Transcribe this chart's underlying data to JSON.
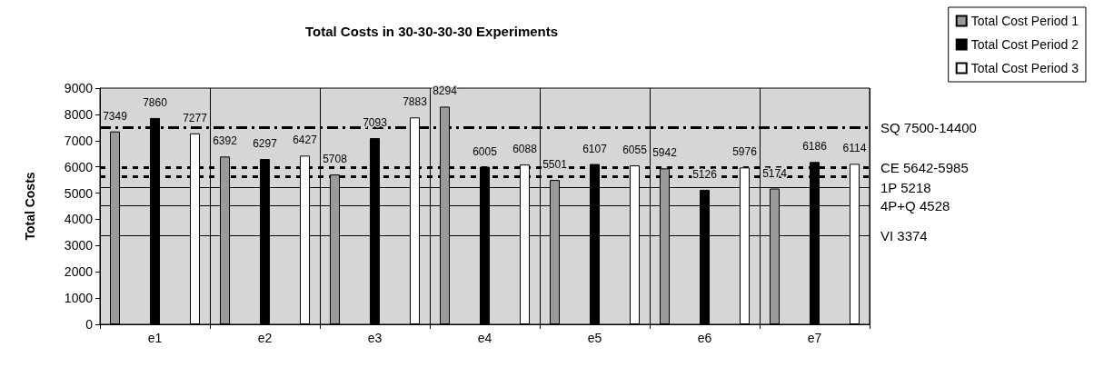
{
  "chart_data": {
    "type": "bar",
    "title": "Total Costs in 30-30-30-30 Experiments",
    "ylabel": "Total Costs",
    "categories": [
      "e1",
      "e2",
      "e3",
      "e4",
      "e5",
      "e6",
      "e7"
    ],
    "series": [
      {
        "name": "Total Cost Period 1",
        "color": "#9a9a9a",
        "values": [
          7349,
          6392,
          5708,
          8294,
          5501,
          5942,
          5174
        ]
      },
      {
        "name": "Total Cost Period 2",
        "color": "#000000",
        "values": [
          7860,
          6297,
          7093,
          6005,
          6107,
          5126,
          6186
        ]
      },
      {
        "name": "Total Cost Period 3",
        "color": "#ffffff",
        "values": [
          7277,
          6427,
          7883,
          6088,
          6055,
          5976,
          6114
        ]
      }
    ],
    "ylim": [
      0,
      9000
    ],
    "yticks": [
      0,
      1000,
      2000,
      3000,
      4000,
      5000,
      6000,
      7000,
      8000,
      9000
    ],
    "data_labels": true,
    "grid": "x",
    "legend": "top right",
    "ref_lines": [
      {
        "axis": "y",
        "value": 7500,
        "label": "SQ 7500-14400",
        "line_style": "dashed",
        "color": "#000000"
      },
      {
        "axis": "y",
        "value": 5985,
        "label": "CE 5642-5985",
        "line_style": "dotted",
        "color": "#000000"
      },
      {
        "axis": "y",
        "value": 5642,
        "label": null,
        "line_style": "dotted",
        "color": "#000000"
      },
      {
        "axis": "y",
        "value": 5218,
        "label": "1P 5218",
        "line_style": "solid",
        "color": "#000000"
      },
      {
        "axis": "y",
        "value": 4528,
        "label": "4P+Q 4528",
        "line_style": "solid",
        "color": "#000000"
      },
      {
        "axis": "y",
        "value": 3374,
        "label": "VI 3374",
        "line_style": "solid",
        "color": "#000000"
      }
    ]
  }
}
